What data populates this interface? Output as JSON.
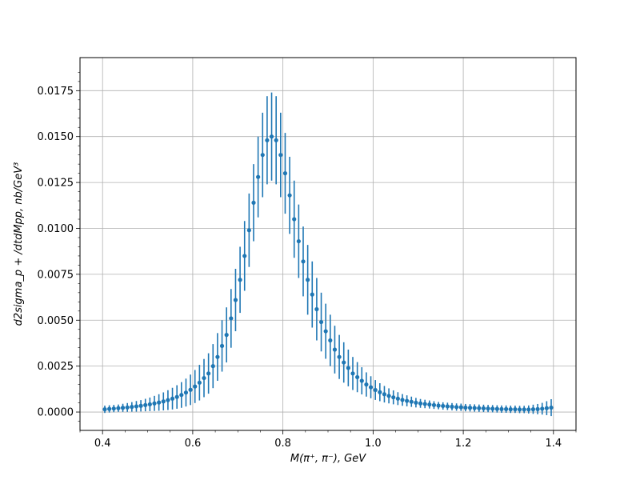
{
  "chart_data": {
    "type": "scatter",
    "style": "errorbar",
    "xlabel": "M(π⁺, π⁻), GeV",
    "ylabel": "d2sigma_p + /dtdMpp, nb/GeV³",
    "xlim": [
      0.35,
      1.45
    ],
    "ylim": [
      -0.001,
      0.0193
    ],
    "grid": true,
    "xticks": [
      0.4,
      0.6,
      0.8,
      1.0,
      1.2,
      1.4
    ],
    "xtick_labels": [
      "0.4",
      "0.6",
      "0.8",
      "1.0",
      "1.2",
      "1.4"
    ],
    "yticks": [
      0,
      0.0025,
      0.005,
      0.0075,
      0.01,
      0.0125,
      0.015,
      0.0175
    ],
    "ytick_labels": [
      "0.0000",
      "0.0025",
      "0.0050",
      "0.0075",
      "0.0100",
      "0.0125",
      "0.0150",
      "0.0175"
    ],
    "color": "#1f77b4",
    "x": [
      0.405,
      0.415,
      0.425,
      0.435,
      0.445,
      0.455,
      0.465,
      0.475,
      0.485,
      0.495,
      0.505,
      0.515,
      0.525,
      0.535,
      0.545,
      0.555,
      0.565,
      0.575,
      0.585,
      0.595,
      0.605,
      0.615,
      0.625,
      0.635,
      0.645,
      0.655,
      0.665,
      0.675,
      0.685,
      0.695,
      0.705,
      0.715,
      0.725,
      0.735,
      0.745,
      0.755,
      0.765,
      0.775,
      0.785,
      0.795,
      0.805,
      0.815,
      0.825,
      0.835,
      0.845,
      0.855,
      0.865,
      0.875,
      0.885,
      0.895,
      0.905,
      0.915,
      0.925,
      0.935,
      0.945,
      0.955,
      0.965,
      0.975,
      0.985,
      0.995,
      1.005,
      1.015,
      1.025,
      1.035,
      1.045,
      1.055,
      1.065,
      1.075,
      1.085,
      1.095,
      1.105,
      1.115,
      1.125,
      1.135,
      1.145,
      1.155,
      1.165,
      1.175,
      1.185,
      1.195,
      1.205,
      1.215,
      1.225,
      1.235,
      1.245,
      1.255,
      1.265,
      1.275,
      1.285,
      1.295,
      1.305,
      1.315,
      1.325,
      1.335,
      1.345,
      1.355,
      1.365,
      1.375,
      1.385,
      1.395
    ],
    "y": [
      0.00015,
      0.00017,
      0.00019,
      0.00021,
      0.00023,
      0.00025,
      0.00028,
      0.00031,
      0.00034,
      0.00038,
      0.00042,
      0.00047,
      0.00052,
      0.00058,
      0.00065,
      0.00073,
      0.00082,
      0.00093,
      0.00106,
      0.00121,
      0.00139,
      0.0016,
      0.00185,
      0.0021,
      0.0025,
      0.003,
      0.0036,
      0.0042,
      0.0051,
      0.0061,
      0.0072,
      0.0085,
      0.0099,
      0.0114,
      0.0128,
      0.014,
      0.0148,
      0.015,
      0.0148,
      0.014,
      0.013,
      0.0118,
      0.0105,
      0.0093,
      0.0082,
      0.0072,
      0.0064,
      0.0056,
      0.0049,
      0.0044,
      0.0039,
      0.0034,
      0.003,
      0.0027,
      0.0024,
      0.0021,
      0.0019,
      0.0017,
      0.0015,
      0.00135,
      0.0012,
      0.00108,
      0.00097,
      0.00088,
      0.0008,
      0.00073,
      0.00066,
      0.00061,
      0.00056,
      0.00051,
      0.00047,
      0.00044,
      0.00041,
      0.00038,
      0.00035,
      0.00033,
      0.00031,
      0.00029,
      0.00027,
      0.00026,
      0.00024,
      0.00023,
      0.00022,
      0.00021,
      0.0002,
      0.00019,
      0.00018,
      0.00017,
      0.00016,
      0.00016,
      0.00015,
      0.00015,
      0.00014,
      0.00014,
      0.00014,
      0.00015,
      0.00016,
      0.00018,
      0.00021,
      0.00024
    ],
    "yerr": [
      0.0002,
      0.0002,
      0.0002,
      0.0002,
      0.00022,
      0.00024,
      0.00026,
      0.00029,
      0.00031,
      0.00034,
      0.00037,
      0.00041,
      0.00045,
      0.00049,
      0.00054,
      0.00059,
      0.00064,
      0.0007,
      0.00076,
      0.00083,
      0.0009,
      0.00097,
      0.00104,
      0.0011,
      0.0012,
      0.0013,
      0.0014,
      0.0015,
      0.0016,
      0.0017,
      0.0018,
      0.0019,
      0.002,
      0.0021,
      0.0022,
      0.0023,
      0.0024,
      0.0024,
      0.0024,
      0.0023,
      0.0022,
      0.0021,
      0.0021,
      0.002,
      0.0019,
      0.0019,
      0.0018,
      0.0017,
      0.0016,
      0.0015,
      0.0014,
      0.0013,
      0.0012,
      0.0011,
      0.001,
      0.0009,
      0.00082,
      0.00074,
      0.00066,
      0.0006,
      0.00054,
      0.00049,
      0.00045,
      0.00041,
      0.00038,
      0.00035,
      0.00032,
      0.0003,
      0.00028,
      0.00026,
      0.00024,
      0.00023,
      0.00022,
      0.00021,
      0.0002,
      0.0002,
      0.0002,
      0.0002,
      0.0002,
      0.0002,
      0.0002,
      0.0002,
      0.0002,
      0.0002,
      0.0002,
      0.0002,
      0.0002,
      0.0002,
      0.0002,
      0.0002,
      0.0002,
      0.0002,
      0.0002,
      0.0002,
      0.00022,
      0.00025,
      0.00028,
      0.00032,
      0.00038,
      0.00046
    ]
  }
}
